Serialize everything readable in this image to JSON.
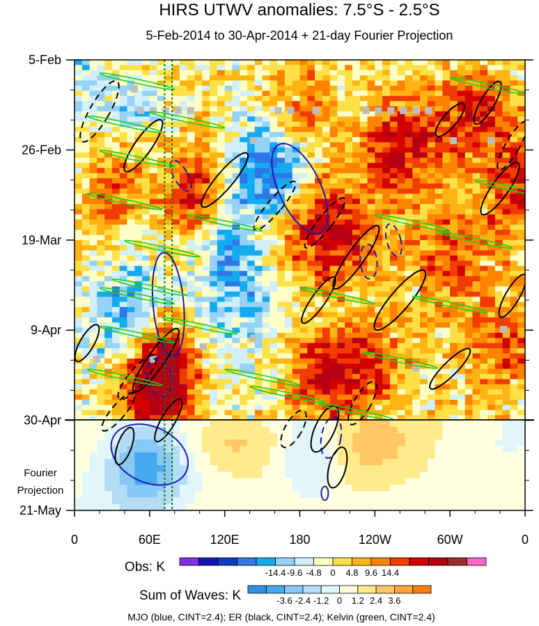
{
  "chart_data": {
    "type": "heatmap",
    "title": "HIRS UTWV anomalies: 7.5°S - 2.5°S",
    "subtitle": "5-Feb-2014 to 30-Apr-2014 + 21-day Fourier Projection",
    "x_ticks": [
      "0",
      "60E",
      "120E",
      "180",
      "120W",
      "60W",
      "0"
    ],
    "x_tick_values": [
      0,
      60,
      120,
      180,
      240,
      300,
      360
    ],
    "xlim": [
      0,
      360
    ],
    "y_ticks": [
      "5-Feb",
      "26-Feb",
      "19-Mar",
      "9-Apr",
      "30-Apr",
      "21-May"
    ],
    "y_tick_days": [
      0,
      21,
      42,
      63,
      84,
      105
    ],
    "ylim_days": [
      0,
      105
    ],
    "obs_end_day": 84,
    "projection_label": [
      "Fourier",
      "Projection"
    ],
    "guide_lines_lon": [
      72,
      78
    ],
    "obs_legend": {
      "label": "Obs: K",
      "levels": [
        "-14.4",
        "-9.6",
        "-4.8",
        "0",
        "4.8",
        "9.6",
        "14.4"
      ],
      "colors": [
        "#7d2ee6",
        "#1414b4",
        "#0a3cc8",
        "#2d78e6",
        "#14aaf0",
        "#96d2f5",
        "#d2f0fa",
        "#ffffc8",
        "#ffe046",
        "#ffb414",
        "#ff8200",
        "#f03c00",
        "#d20000",
        "#b40014",
        "#9b2d2d",
        "#ff64c8"
      ]
    },
    "waves_legend": {
      "label": "Sum of Waves: K",
      "levels": [
        "-3.6",
        "-2.4",
        "-1.2",
        "0",
        "1.2",
        "2.4",
        "3.6"
      ],
      "colors": [
        "#2d91e6",
        "#46aaf0",
        "#87c8f5",
        "#b4dcf5",
        "#e1f5fa",
        "#ffffe1",
        "#ffeb8c",
        "#ffc864",
        "#ffa532",
        "#ff7d14"
      ]
    },
    "footer": "MJO (blue, CINT=2.4); ER (black, CINT=2.4); Kelvin (green, CINT=2.4)",
    "series": [
      {
        "name": "MJO",
        "color": "#1a1ab0"
      },
      {
        "name": "ER",
        "color": "#000000"
      },
      {
        "name": "Kelvin",
        "color": "#22cc22"
      }
    ]
  }
}
